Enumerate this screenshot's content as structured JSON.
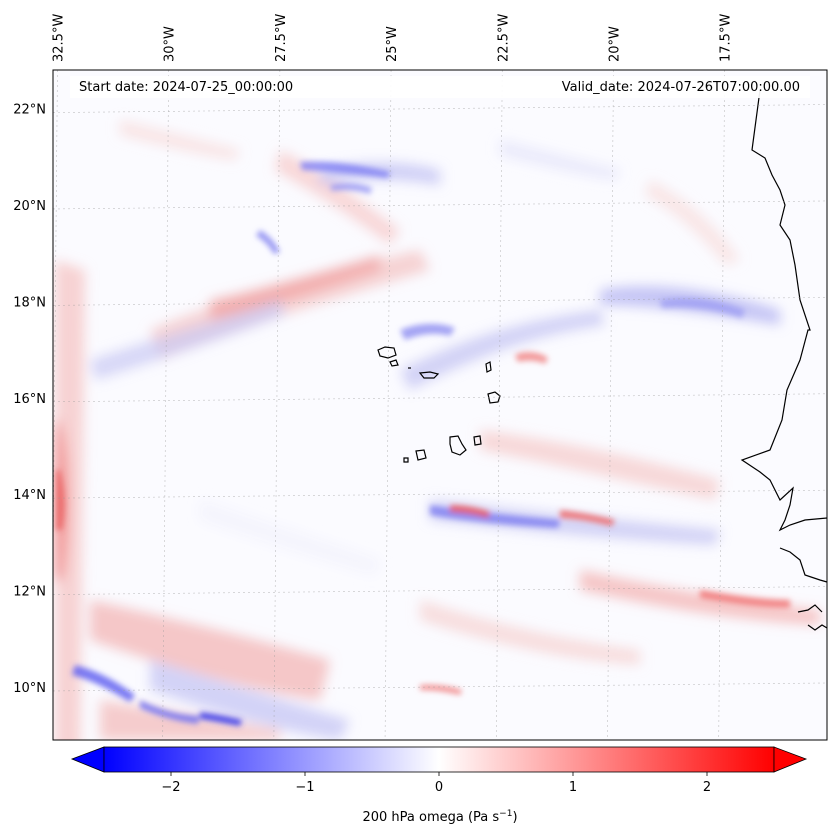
{
  "map": {
    "start_date_text": "Start date: 2024-07-25_00:00:00",
    "valid_date_text": "Valid_date: 2024-07-26T07:00:00.00",
    "lon_ticks": [
      {
        "value": -32.5,
        "label": "32.5°W"
      },
      {
        "value": -30.0,
        "label": "30°W"
      },
      {
        "value": -27.5,
        "label": "27.5°W"
      },
      {
        "value": -25.0,
        "label": "25°W"
      },
      {
        "value": -22.5,
        "label": "22.5°W"
      },
      {
        "value": -20.0,
        "label": "20°W"
      },
      {
        "value": -17.5,
        "label": "17.5°W"
      }
    ],
    "lat_ticks": [
      {
        "value": 22,
        "label": "22°N"
      },
      {
        "value": 20,
        "label": "20°N"
      },
      {
        "value": 18,
        "label": "18°N"
      },
      {
        "value": 16,
        "label": "16°N"
      },
      {
        "value": 14,
        "label": "14°N"
      },
      {
        "value": 12,
        "label": "12°N"
      },
      {
        "value": 10,
        "label": "10°N"
      }
    ],
    "lon_range": [
      -32.6,
      -15.2
    ],
    "lat_range": [
      8.9,
      22.8
    ]
  },
  "colorbar": {
    "label_main": "200 hPa omega (Pa s",
    "label_exp": "−1",
    "label_tail": ")",
    "range": [
      -2.5,
      2.5
    ],
    "ticks": [
      {
        "value": -2,
        "label": "−2"
      },
      {
        "value": -1,
        "label": "−1"
      },
      {
        "value": 0,
        "label": "0"
      },
      {
        "value": 1,
        "label": "1"
      },
      {
        "value": 2,
        "label": "2"
      }
    ],
    "colors": {
      "negative": "#0000ff",
      "neutral": "#ffffff",
      "positive": "#ff0000"
    }
  }
}
